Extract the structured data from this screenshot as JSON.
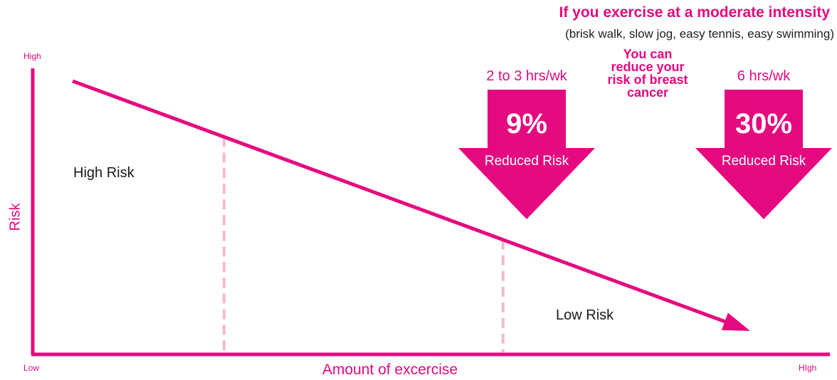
{
  "colors": {
    "accent": "#e5097f",
    "guide": "#f4b8d3",
    "text": "#1a1a1a"
  },
  "chart_data": {
    "type": "line",
    "title": "If you exercise at a moderate intensity",
    "subtitle": "(brisk walk, slow jog, easy tennis, easy swimming)",
    "xlabel": "Amount of excercise",
    "ylabel": "Risk",
    "x_tick_labels": {
      "low": "Low",
      "high": "HIgh"
    },
    "y_tick_labels": {
      "high": "High"
    },
    "regions": {
      "high": "High Risk",
      "low": "Low Risk"
    },
    "middle_message": "You can reduce your risk of breast cancer",
    "xlim": [
      0,
      10
    ],
    "ylim": [
      0,
      10
    ],
    "series": [
      {
        "x": [
          0.5,
          9.0
        ],
        "y": [
          9.3,
          0.8
        ]
      }
    ],
    "reference_points": [
      {
        "hours": "2 to 3 hrs/wk",
        "percent": "9%",
        "caption": "Reduced Risk",
        "x": 2.4
      },
      {
        "hours": "6 hrs/wk",
        "percent": "30%",
        "caption": "Reduced Risk",
        "x": 5.9
      }
    ]
  }
}
